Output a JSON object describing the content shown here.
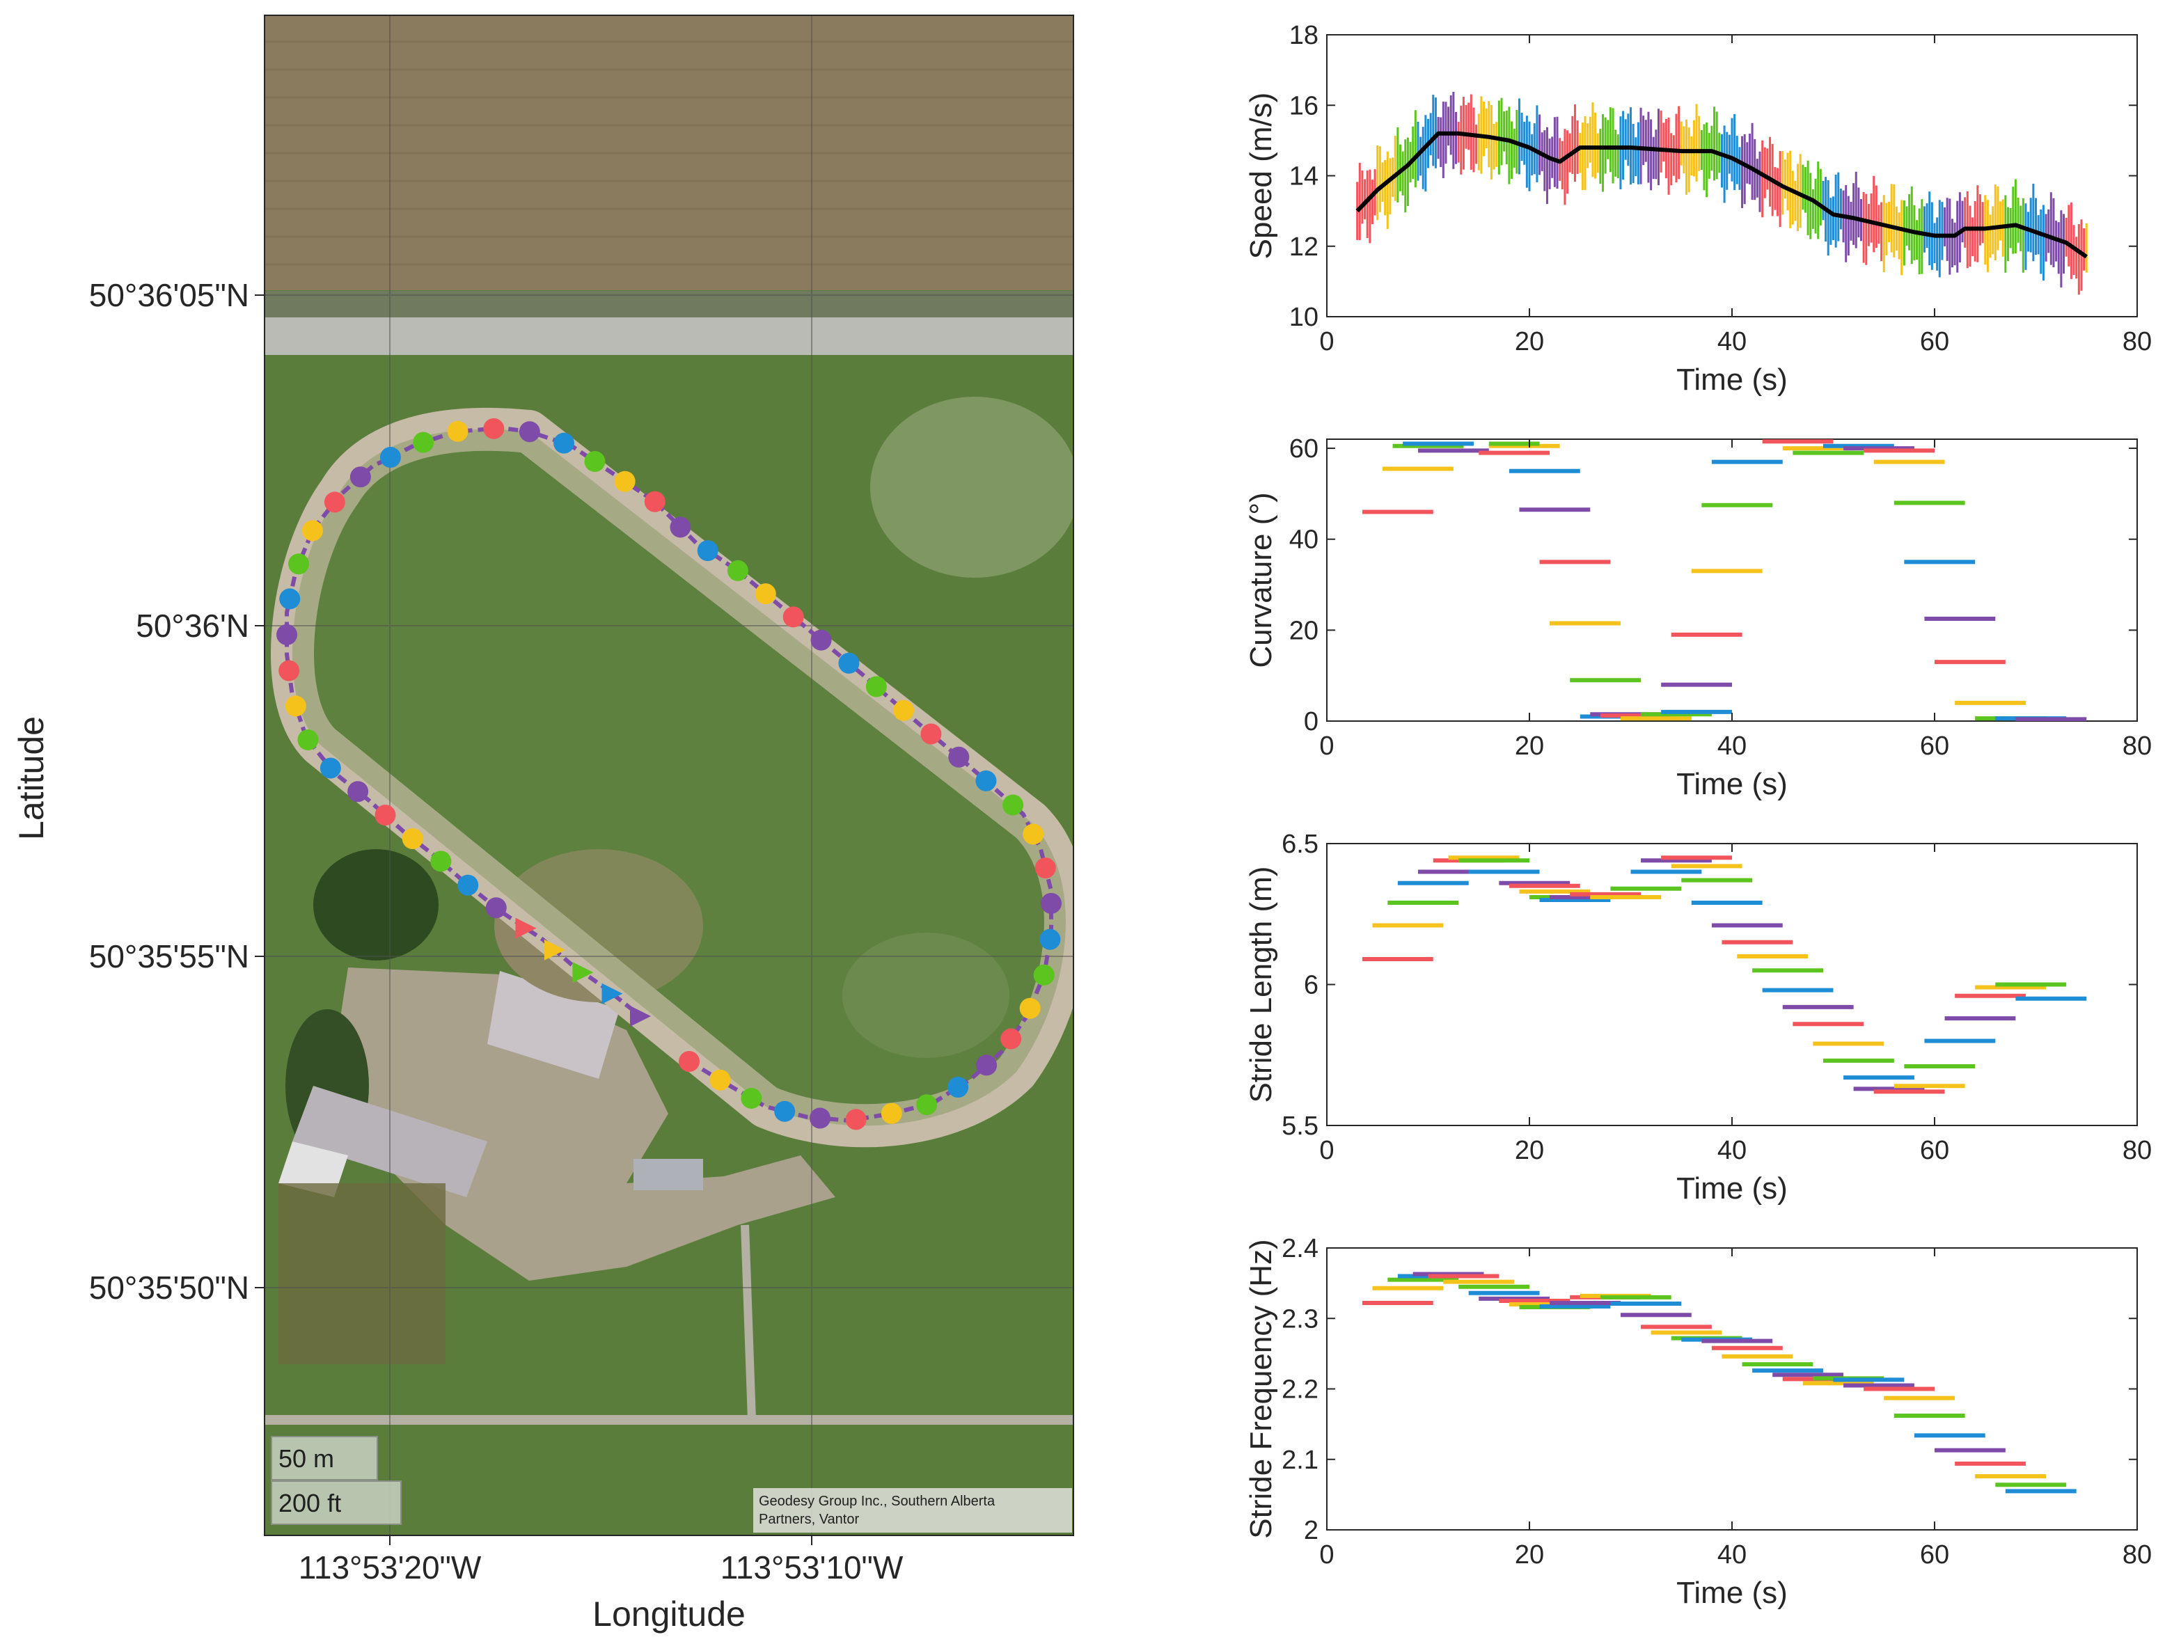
{
  "colors": {
    "series": [
      "#f2545b",
      "#f5c21b",
      "#5cc41e",
      "#1f8dd6",
      "#7e4ca8"
    ],
    "mean_line": "#000000",
    "track_line": "#7e4ca8"
  },
  "map": {
    "xlabel": "Longitude",
    "ylabel": "Latitude",
    "lat_ticks": [
      "50°36'05\"N",
      "50°36'N",
      "50°35'55\"N",
      "50°35'50\"N"
    ],
    "lon_ticks": [
      "113°53'20\"W",
      "113°53'10\"W"
    ],
    "scale_m": "50 m",
    "scale_ft": "200 ft",
    "credit_line1": "Geodesy Group Inc., Southern Alberta",
    "credit_line2": "Partners, Vantor"
  },
  "chart_data": [
    {
      "type": "line",
      "xlabel": "Time (s)",
      "ylabel": "Speed (m/s)",
      "xlim": [
        0,
        80
      ],
      "ylim": [
        10,
        18
      ],
      "xticks": [
        0,
        20,
        40,
        60,
        80
      ],
      "yticks": [
        10,
        12,
        14,
        16,
        18
      ],
      "mean_series": {
        "x": [
          3,
          5,
          8,
          10,
          11,
          13,
          16,
          18,
          20,
          22,
          23,
          25,
          30,
          35,
          38,
          40,
          42,
          45,
          48,
          50,
          52,
          55,
          58,
          60,
          62,
          63,
          65,
          68,
          70,
          73,
          75
        ],
        "y": [
          13.0,
          13.6,
          14.3,
          14.9,
          15.2,
          15.2,
          15.1,
          15.0,
          14.8,
          14.5,
          14.4,
          14.8,
          14.8,
          14.7,
          14.7,
          14.5,
          14.2,
          13.7,
          13.3,
          12.9,
          12.8,
          12.6,
          12.4,
          12.3,
          12.3,
          12.5,
          12.5,
          12.6,
          12.4,
          12.1,
          11.7
        ]
      },
      "variation_half_range": 1.1
    },
    {
      "type": "bar",
      "xlabel": "Time (s)",
      "ylabel": "Curvature (°)",
      "xlim": [
        0,
        80
      ],
      "ylim": [
        0,
        62
      ],
      "xticks": [
        0,
        20,
        40,
        60,
        80
      ],
      "yticks": [
        0,
        20,
        40,
        60
      ],
      "segments": [
        {
          "x0": 3.5,
          "x1": 10.5,
          "y": 46
        },
        {
          "x0": 5.5,
          "x1": 12.5,
          "y": 55.5
        },
        {
          "x0": 6.5,
          "x1": 13.5,
          "y": 60.5
        },
        {
          "x0": 7.5,
          "x1": 14.5,
          "y": 61
        },
        {
          "x0": 9,
          "x1": 16,
          "y": 59.5
        },
        {
          "x0": 15,
          "x1": 22,
          "y": 59
        },
        {
          "x0": 16,
          "x1": 23,
          "y": 60.5
        },
        {
          "x0": 16,
          "x1": 21,
          "y": 61
        },
        {
          "x0": 18,
          "x1": 25,
          "y": 55
        },
        {
          "x0": 19,
          "x1": 26,
          "y": 46.5
        },
        {
          "x0": 21,
          "x1": 28,
          "y": 35
        },
        {
          "x0": 22,
          "x1": 29,
          "y": 21.5
        },
        {
          "x0": 24,
          "x1": 31,
          "y": 9
        },
        {
          "x0": 25,
          "x1": 32,
          "y": 1
        },
        {
          "x0": 26,
          "x1": 33,
          "y": 1.5
        },
        {
          "x0": 27,
          "x1": 34,
          "y": 1.2
        },
        {
          "x0": 29,
          "x1": 36,
          "y": 0.6
        },
        {
          "x0": 31,
          "x1": 38,
          "y": 1.5
        },
        {
          "x0": 33,
          "x1": 40,
          "y": 2
        },
        {
          "x0": 33,
          "x1": 40,
          "y": 8
        },
        {
          "x0": 34,
          "x1": 41,
          "y": 19
        },
        {
          "x0": 36,
          "x1": 43,
          "y": 33
        },
        {
          "x0": 37,
          "x1": 44,
          "y": 47.5
        },
        {
          "x0": 38,
          "x1": 45,
          "y": 57
        },
        {
          "x0": 40,
          "x1": 47,
          "y": 63
        },
        {
          "x0": 43,
          "x1": 50,
          "y": 61.5
        },
        {
          "x0": 45,
          "x1": 52,
          "y": 60
        },
        {
          "x0": 46,
          "x1": 53,
          "y": 59
        },
        {
          "x0": 49,
          "x1": 56,
          "y": 60.5
        },
        {
          "x0": 51,
          "x1": 58,
          "y": 60
        },
        {
          "x0": 53,
          "x1": 60,
          "y": 59.5
        },
        {
          "x0": 54,
          "x1": 61,
          "y": 57
        },
        {
          "x0": 56,
          "x1": 63,
          "y": 48
        },
        {
          "x0": 57,
          "x1": 64,
          "y": 35
        },
        {
          "x0": 59,
          "x1": 66,
          "y": 22.5
        },
        {
          "x0": 60,
          "x1": 67,
          "y": 13
        },
        {
          "x0": 62,
          "x1": 69,
          "y": 4
        },
        {
          "x0": 64,
          "x1": 71,
          "y": 0.6
        },
        {
          "x0": 66,
          "x1": 73,
          "y": 0.6
        },
        {
          "x0": 68,
          "x1": 75,
          "y": 0.4
        }
      ]
    },
    {
      "type": "bar",
      "xlabel": "Time (s)",
      "ylabel": "Stride Length (m)",
      "xlim": [
        0,
        80
      ],
      "ylim": [
        5.5,
        6.5
      ],
      "xticks": [
        0,
        20,
        40,
        60,
        80
      ],
      "yticks": [
        5.5,
        6,
        6.5
      ],
      "segments": [
        {
          "x0": 3.5,
          "x1": 10.5,
          "y": 6.09
        },
        {
          "x0": 4.5,
          "x1": 11.5,
          "y": 6.21
        },
        {
          "x0": 6,
          "x1": 13,
          "y": 6.29
        },
        {
          "x0": 7,
          "x1": 14,
          "y": 6.36
        },
        {
          "x0": 9,
          "x1": 16,
          "y": 6.4
        },
        {
          "x0": 10.5,
          "x1": 17.5,
          "y": 6.44
        },
        {
          "x0": 12,
          "x1": 19,
          "y": 6.45
        },
        {
          "x0": 13,
          "x1": 20,
          "y": 6.44
        },
        {
          "x0": 14,
          "x1": 21,
          "y": 6.4
        },
        {
          "x0": 17,
          "x1": 24,
          "y": 6.36
        },
        {
          "x0": 18,
          "x1": 25,
          "y": 6.35
        },
        {
          "x0": 19,
          "x1": 26,
          "y": 6.33
        },
        {
          "x0": 20,
          "x1": 27,
          "y": 6.31
        },
        {
          "x0": 21,
          "x1": 28,
          "y": 6.3
        },
        {
          "x0": 22,
          "x1": 29,
          "y": 6.31
        },
        {
          "x0": 24,
          "x1": 31,
          "y": 6.32
        },
        {
          "x0": 26,
          "x1": 33,
          "y": 6.31
        },
        {
          "x0": 28,
          "x1": 35,
          "y": 6.34
        },
        {
          "x0": 30,
          "x1": 37,
          "y": 6.4
        },
        {
          "x0": 31,
          "x1": 38,
          "y": 6.44
        },
        {
          "x0": 33,
          "x1": 40,
          "y": 6.45
        },
        {
          "x0": 34,
          "x1": 41,
          "y": 6.42
        },
        {
          "x0": 35,
          "x1": 42,
          "y": 6.37
        },
        {
          "x0": 36,
          "x1": 43,
          "y": 6.29
        },
        {
          "x0": 38,
          "x1": 45,
          "y": 6.21
        },
        {
          "x0": 39,
          "x1": 46,
          "y": 6.15
        },
        {
          "x0": 40.5,
          "x1": 47.5,
          "y": 6.1
        },
        {
          "x0": 42,
          "x1": 49,
          "y": 6.05
        },
        {
          "x0": 43,
          "x1": 50,
          "y": 5.98
        },
        {
          "x0": 45,
          "x1": 52,
          "y": 5.92
        },
        {
          "x0": 46,
          "x1": 53,
          "y": 5.86
        },
        {
          "x0": 48,
          "x1": 55,
          "y": 5.79
        },
        {
          "x0": 49,
          "x1": 56,
          "y": 5.73
        },
        {
          "x0": 51,
          "x1": 58,
          "y": 5.67
        },
        {
          "x0": 52,
          "x1": 59,
          "y": 5.63
        },
        {
          "x0": 54,
          "x1": 61,
          "y": 5.62
        },
        {
          "x0": 56,
          "x1": 63,
          "y": 5.64
        },
        {
          "x0": 57,
          "x1": 64,
          "y": 5.71
        },
        {
          "x0": 59,
          "x1": 66,
          "y": 5.8
        },
        {
          "x0": 61,
          "x1": 68,
          "y": 5.88
        },
        {
          "x0": 62,
          "x1": 69,
          "y": 5.96
        },
        {
          "x0": 64,
          "x1": 71,
          "y": 5.99
        },
        {
          "x0": 66,
          "x1": 73,
          "y": 6.0
        },
        {
          "x0": 68,
          "x1": 75,
          "y": 5.95
        }
      ]
    },
    {
      "type": "bar",
      "xlabel": "Time (s)",
      "ylabel": "Stride Frequency (Hz)",
      "xlim": [
        0,
        80
      ],
      "ylim": [
        2,
        2.4
      ],
      "xticks": [
        0,
        20,
        40,
        60,
        80
      ],
      "yticks": [
        2,
        2.1,
        2.2,
        2.3,
        2.4
      ],
      "segments": [
        {
          "x0": 3.5,
          "x1": 10.5,
          "y": 2.322
        },
        {
          "x0": 4.5,
          "x1": 11.5,
          "y": 2.343
        },
        {
          "x0": 6,
          "x1": 13,
          "y": 2.355
        },
        {
          "x0": 7,
          "x1": 14,
          "y": 2.36
        },
        {
          "x0": 8.5,
          "x1": 15.5,
          "y": 2.363
        },
        {
          "x0": 10,
          "x1": 17,
          "y": 2.36
        },
        {
          "x0": 11.5,
          "x1": 18.5,
          "y": 2.352
        },
        {
          "x0": 13,
          "x1": 20,
          "y": 2.345
        },
        {
          "x0": 14,
          "x1": 21,
          "y": 2.336
        },
        {
          "x0": 15,
          "x1": 22,
          "y": 2.328
        },
        {
          "x0": 17,
          "x1": 24,
          "y": 2.325
        },
        {
          "x0": 18,
          "x1": 25,
          "y": 2.32
        },
        {
          "x0": 19,
          "x1": 26,
          "y": 2.316
        },
        {
          "x0": 21,
          "x1": 28,
          "y": 2.317
        },
        {
          "x0": 22,
          "x1": 29,
          "y": 2.322
        },
        {
          "x0": 24,
          "x1": 31,
          "y": 2.33
        },
        {
          "x0": 25,
          "x1": 32,
          "y": 2.332
        },
        {
          "x0": 27,
          "x1": 34,
          "y": 2.33
        },
        {
          "x0": 28,
          "x1": 35,
          "y": 2.321
        },
        {
          "x0": 29,
          "x1": 36,
          "y": 2.305
        },
        {
          "x0": 31,
          "x1": 38,
          "y": 2.288
        },
        {
          "x0": 32,
          "x1": 39,
          "y": 2.28
        },
        {
          "x0": 34,
          "x1": 41,
          "y": 2.272
        },
        {
          "x0": 35,
          "x1": 42,
          "y": 2.27
        },
        {
          "x0": 37,
          "x1": 44,
          "y": 2.268
        },
        {
          "x0": 38,
          "x1": 45,
          "y": 2.258
        },
        {
          "x0": 39,
          "x1": 46,
          "y": 2.246
        },
        {
          "x0": 41,
          "x1": 48,
          "y": 2.235
        },
        {
          "x0": 42,
          "x1": 49,
          "y": 2.226
        },
        {
          "x0": 44,
          "x1": 51,
          "y": 2.22
        },
        {
          "x0": 45,
          "x1": 52,
          "y": 2.214
        },
        {
          "x0": 47,
          "x1": 54,
          "y": 2.208
        },
        {
          "x0": 48,
          "x1": 55,
          "y": 2.215
        },
        {
          "x0": 50,
          "x1": 57,
          "y": 2.213
        },
        {
          "x0": 51,
          "x1": 58,
          "y": 2.205
        },
        {
          "x0": 53,
          "x1": 60,
          "y": 2.2
        },
        {
          "x0": 55,
          "x1": 62,
          "y": 2.187
        },
        {
          "x0": 56,
          "x1": 63,
          "y": 2.162
        },
        {
          "x0": 58,
          "x1": 65,
          "y": 2.134
        },
        {
          "x0": 60,
          "x1": 67,
          "y": 2.113
        },
        {
          "x0": 62,
          "x1": 69,
          "y": 2.094
        },
        {
          "x0": 64,
          "x1": 71,
          "y": 2.076
        },
        {
          "x0": 66,
          "x1": 73,
          "y": 2.064
        },
        {
          "x0": 67,
          "x1": 74,
          "y": 2.055
        }
      ]
    }
  ]
}
